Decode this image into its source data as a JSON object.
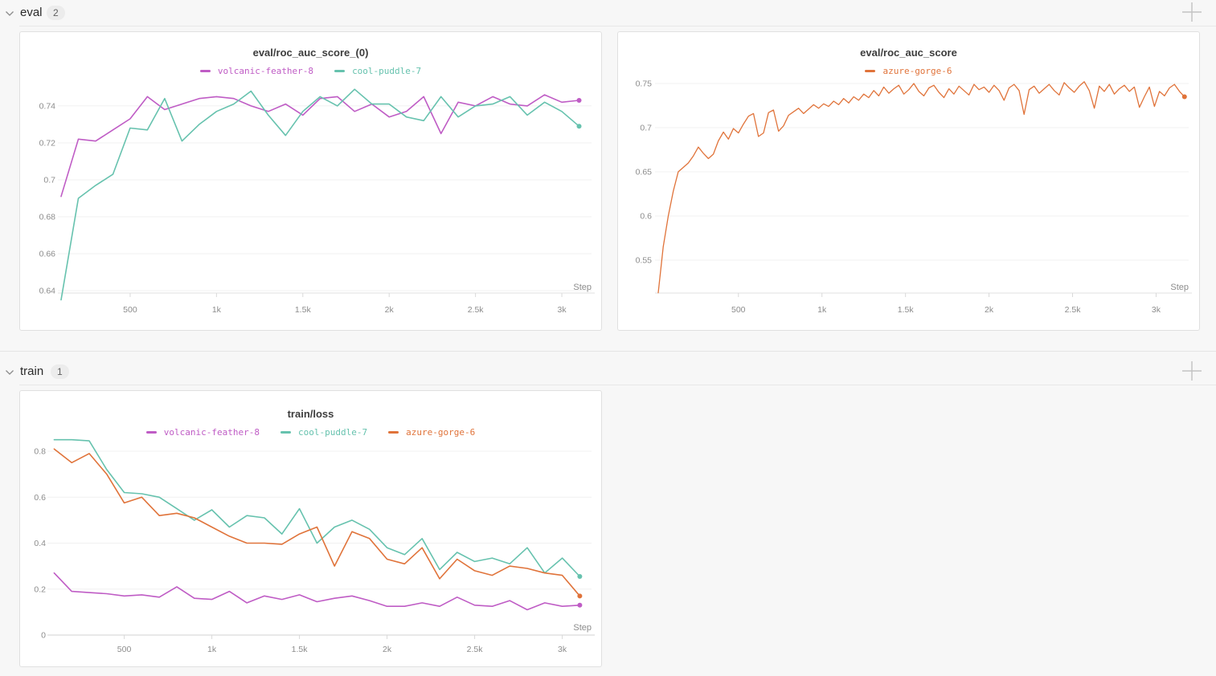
{
  "sections": [
    {
      "name": "eval",
      "count": "2"
    },
    {
      "name": "train",
      "count": "1"
    }
  ],
  "icons": {
    "chevron": "chevron-down",
    "add_panel": "plus"
  },
  "runs": [
    {
      "name": "volcanic-feather-8",
      "color": "#bf5cc5"
    },
    {
      "name": "cool-puddle-7",
      "color": "#66c2ae"
    },
    {
      "name": "azure-gorge-6",
      "color": "#e0733a"
    }
  ],
  "chart_data": [
    {
      "type": "line",
      "title": "eval/roc_auc_score_(0)",
      "xlabel": "Step",
      "xlim": [
        100,
        3172
      ],
      "ylim": [
        0.6387,
        0.7491
      ],
      "grid": true,
      "legend_position": "top",
      "xticks": {
        "values": [
          500,
          1000,
          1500,
          2000,
          2500,
          3000
        ],
        "labels": [
          "500",
          "1k",
          "1.5k",
          "2k",
          "2.5k",
          "3k"
        ]
      },
      "yticks": {
        "values": [
          0.64,
          0.66,
          0.68,
          0.7,
          0.72,
          0.74
        ],
        "labels": [
          "0.64",
          "0.66",
          "0.68",
          "0.7",
          "0.72",
          "0.74"
        ]
      },
      "x": [
        100,
        200,
        300,
        400,
        500,
        600,
        700,
        800,
        900,
        1000,
        1100,
        1200,
        1300,
        1400,
        1500,
        1600,
        1700,
        1800,
        1900,
        2000,
        2100,
        2200,
        2300,
        2400,
        2500,
        2600,
        2700,
        2800,
        2900,
        3000,
        3100
      ],
      "series": [
        {
          "name": "volcanic-feather-8",
          "color": "#bf5cc5",
          "values": [
            0.691,
            0.722,
            0.721,
            0.727,
            0.733,
            0.745,
            0.738,
            0.741,
            0.744,
            0.745,
            0.744,
            0.74,
            0.737,
            0.741,
            0.735,
            0.744,
            0.745,
            0.737,
            0.741,
            0.734,
            0.737,
            0.745,
            0.725,
            0.742,
            0.74,
            0.745,
            0.741,
            0.74,
            0.746,
            0.742,
            0.743
          ]
        },
        {
          "name": "cool-puddle-7",
          "color": "#66c2ae",
          "values": [
            0.635,
            0.69,
            0.697,
            0.703,
            0.728,
            0.727,
            0.744,
            0.721,
            0.73,
            0.737,
            0.741,
            0.748,
            0.735,
            0.724,
            0.737,
            0.745,
            0.74,
            0.749,
            0.741,
            0.741,
            0.734,
            0.732,
            0.745,
            0.734,
            0.74,
            0.741,
            0.745,
            0.735,
            0.742,
            0.737,
            0.729
          ]
        }
      ]
    },
    {
      "type": "line",
      "title": "eval/roc_auc_score",
      "xlabel": "Step",
      "xlim": [
        20,
        3195
      ],
      "ylim": [
        0.5127,
        0.7618
      ],
      "grid": true,
      "legend_position": "top",
      "xticks": {
        "values": [
          500,
          1000,
          1500,
          2000,
          2500,
          3000
        ],
        "labels": [
          "500",
          "1k",
          "1.5k",
          "2k",
          "2.5k",
          "3k"
        ]
      },
      "yticks": {
        "values": [
          0.55,
          0.6,
          0.65,
          0.7,
          0.75
        ],
        "labels": [
          "0.55",
          "0.6",
          "0.65",
          "0.7",
          "0.75"
        ]
      },
      "x": [
        20,
        50,
        80,
        110,
        140,
        170,
        200,
        230,
        260,
        290,
        320,
        350,
        380,
        410,
        440,
        470,
        500,
        530,
        560,
        590,
        620,
        650,
        680,
        710,
        740,
        770,
        800,
        830,
        860,
        890,
        920,
        950,
        980,
        1010,
        1040,
        1070,
        1100,
        1130,
        1160,
        1190,
        1220,
        1250,
        1280,
        1310,
        1340,
        1370,
        1400,
        1430,
        1460,
        1490,
        1520,
        1550,
        1580,
        1610,
        1640,
        1670,
        1700,
        1730,
        1760,
        1790,
        1820,
        1850,
        1880,
        1910,
        1940,
        1970,
        2000,
        2030,
        2060,
        2090,
        2120,
        2150,
        2180,
        2210,
        2240,
        2270,
        2300,
        2330,
        2360,
        2390,
        2420,
        2450,
        2480,
        2510,
        2540,
        2570,
        2600,
        2630,
        2660,
        2690,
        2720,
        2750,
        2780,
        2810,
        2840,
        2870,
        2900,
        2930,
        2960,
        2990,
        3020,
        3050,
        3080,
        3110,
        3140,
        3170
      ],
      "series": [
        {
          "name": "azure-gorge-6",
          "color": "#e0733a",
          "values": [
            0.513,
            0.565,
            0.6,
            0.628,
            0.65,
            0.655,
            0.66,
            0.668,
            0.678,
            0.671,
            0.665,
            0.67,
            0.685,
            0.695,
            0.687,
            0.699,
            0.694,
            0.704,
            0.713,
            0.716,
            0.69,
            0.694,
            0.717,
            0.72,
            0.696,
            0.702,
            0.714,
            0.718,
            0.722,
            0.716,
            0.721,
            0.726,
            0.722,
            0.727,
            0.724,
            0.73,
            0.726,
            0.733,
            0.728,
            0.735,
            0.731,
            0.738,
            0.734,
            0.742,
            0.736,
            0.746,
            0.739,
            0.744,
            0.748,
            0.738,
            0.743,
            0.75,
            0.741,
            0.736,
            0.745,
            0.748,
            0.74,
            0.734,
            0.744,
            0.738,
            0.747,
            0.742,
            0.737,
            0.749,
            0.743,
            0.746,
            0.74,
            0.748,
            0.742,
            0.731,
            0.745,
            0.749,
            0.742,
            0.715,
            0.743,
            0.747,
            0.739,
            0.744,
            0.749,
            0.742,
            0.737,
            0.751,
            0.745,
            0.74,
            0.747,
            0.752,
            0.742,
            0.722,
            0.747,
            0.741,
            0.749,
            0.738,
            0.744,
            0.748,
            0.741,
            0.746,
            0.723,
            0.735,
            0.746,
            0.724,
            0.741,
            0.736,
            0.745,
            0.749,
            0.741,
            0.735
          ]
        }
      ]
    },
    {
      "type": "line",
      "title": "train/loss",
      "xlabel": "Step",
      "xlim": [
        80,
        3167
      ],
      "ylim": [
        0,
        0.856
      ],
      "grid": true,
      "legend_position": "top",
      "xticks": {
        "values": [
          500,
          1000,
          1500,
          2000,
          2500,
          3000
        ],
        "labels": [
          "500",
          "1k",
          "1.5k",
          "2k",
          "2.5k",
          "3k"
        ]
      },
      "yticks": {
        "values": [
          0,
          0.2,
          0.4,
          0.6,
          0.8
        ],
        "labels": [
          "0",
          "0.2",
          "0.4",
          "0.6",
          "0.8"
        ]
      },
      "x": [
        100,
        200,
        300,
        400,
        500,
        600,
        700,
        800,
        900,
        1000,
        1100,
        1200,
        1300,
        1400,
        1500,
        1600,
        1700,
        1800,
        1900,
        2000,
        2100,
        2200,
        2300,
        2400,
        2500,
        2600,
        2700,
        2800,
        2900,
        3000,
        3100
      ],
      "series": [
        {
          "name": "volcanic-feather-8",
          "color": "#bf5cc5",
          "values": [
            0.27,
            0.19,
            0.185,
            0.18,
            0.17,
            0.175,
            0.165,
            0.21,
            0.16,
            0.155,
            0.19,
            0.14,
            0.17,
            0.155,
            0.175,
            0.145,
            0.16,
            0.17,
            0.15,
            0.125,
            0.125,
            0.14,
            0.125,
            0.165,
            0.13,
            0.125,
            0.15,
            0.11,
            0.14,
            0.125,
            0.13
          ]
        },
        {
          "name": "cool-puddle-7",
          "color": "#66c2ae",
          "values": [
            0.85,
            0.85,
            0.845,
            0.72,
            0.62,
            0.615,
            0.6,
            0.55,
            0.5,
            0.545,
            0.47,
            0.52,
            0.51,
            0.44,
            0.55,
            0.4,
            0.47,
            0.5,
            0.46,
            0.38,
            0.35,
            0.42,
            0.285,
            0.36,
            0.32,
            0.335,
            0.31,
            0.38,
            0.27,
            0.335,
            0.255
          ]
        },
        {
          "name": "azure-gorge-6",
          "color": "#e0733a",
          "values": [
            0.81,
            0.75,
            0.79,
            0.7,
            0.575,
            0.6,
            0.52,
            0.53,
            0.51,
            0.47,
            0.43,
            0.4,
            0.4,
            0.395,
            0.44,
            0.47,
            0.3,
            0.45,
            0.42,
            0.33,
            0.31,
            0.38,
            0.245,
            0.33,
            0.28,
            0.26,
            0.3,
            0.29,
            0.27,
            0.26,
            0.17
          ]
        }
      ]
    }
  ]
}
